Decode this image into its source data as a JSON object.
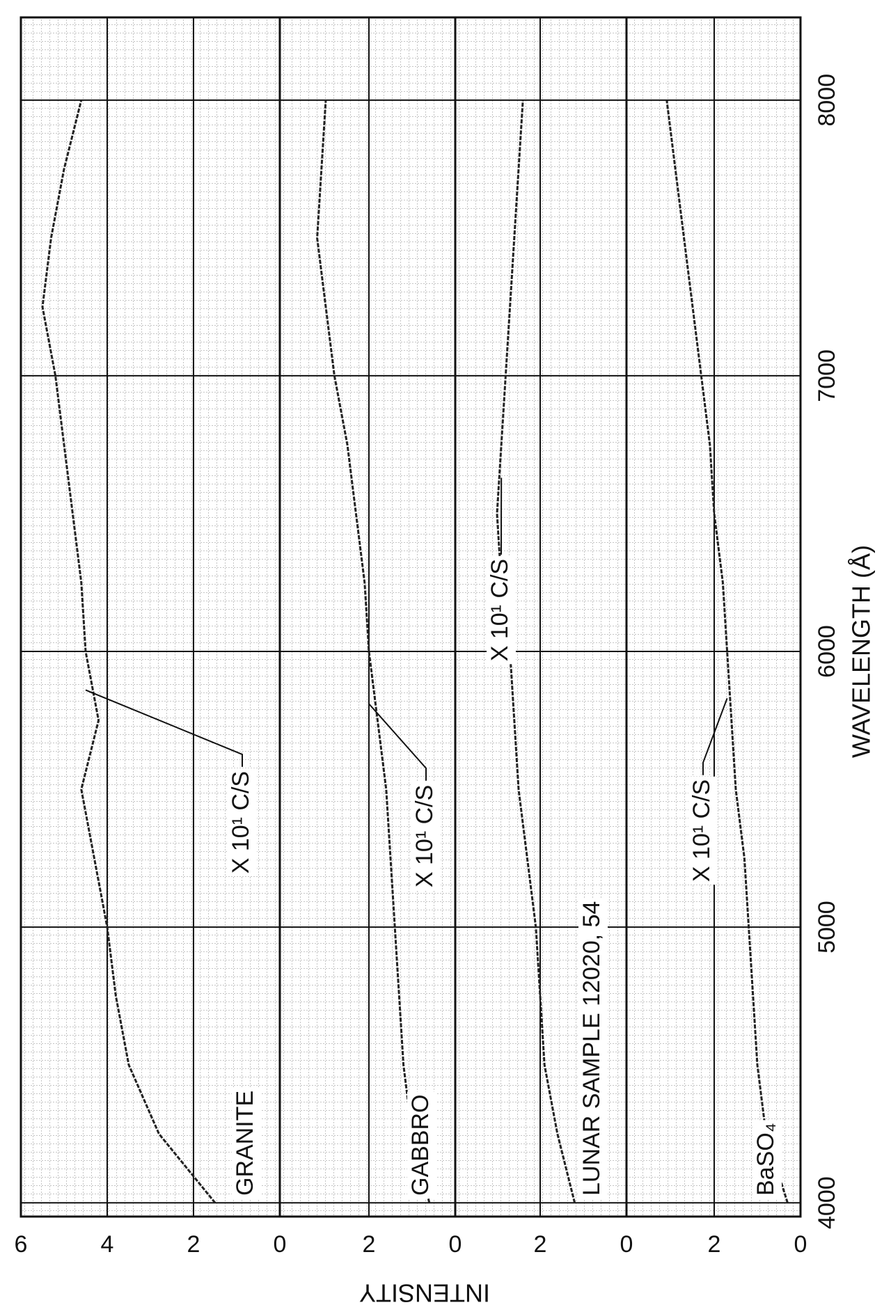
{
  "chart_data": {
    "type": "line",
    "x_label": "WAVELENGTH (Å)",
    "y_label": "INTENSITY",
    "xlim": [
      3950,
      8300
    ],
    "xticks": [
      4000,
      5000,
      6000,
      7000,
      8000
    ],
    "x": [
      4000,
      4250,
      4500,
      4750,
      5000,
      5250,
      5500,
      5750,
      6000,
      6250,
      6500,
      6750,
      7000,
      7250,
      7500,
      7750,
      8000
    ],
    "grid": true,
    "panels": [
      {
        "name": "BaSO₄",
        "scale_label": "X 10¹ C/S",
        "color": "#222222",
        "ylim": [
          0,
          4
        ],
        "yticks": [
          0,
          2
        ],
        "values": [
          0.3,
          0.8,
          1.0,
          1.1,
          1.2,
          1.3,
          1.5,
          1.6,
          1.7,
          1.8,
          2.0,
          2.1,
          2.3,
          2.5,
          2.7,
          2.9,
          3.1
        ]
      },
      {
        "name": "LUNAR SAMPLE 12020, 54",
        "scale_label": "X 10¹ C/S",
        "color": "#222222",
        "ylim": [
          0,
          4
        ],
        "yticks": [
          0,
          2
        ],
        "values": [
          1.2,
          1.6,
          1.9,
          2.0,
          2.1,
          2.3,
          2.5,
          2.6,
          2.7,
          2.9,
          3.0,
          2.9,
          2.8,
          2.7,
          2.6,
          2.5,
          2.4
        ]
      },
      {
        "name": "GABBRO",
        "scale_label": "X 10¹ C/S",
        "color": "#222222",
        "ylim": [
          0,
          4
        ],
        "yticks": [
          0,
          2
        ],
        "values": [
          0.6,
          1.0,
          1.2,
          1.3,
          1.4,
          1.5,
          1.6,
          1.8,
          2.0,
          2.1,
          2.3,
          2.5,
          2.8,
          3.0,
          3.2,
          3.1,
          3.0
        ]
      },
      {
        "name": "GRANITE",
        "scale_label": "X 10¹ C/S",
        "color": "#222222",
        "ylim": [
          0,
          6
        ],
        "yticks": [
          0,
          2,
          4,
          6
        ],
        "values": [
          1.5,
          2.8,
          3.5,
          3.8,
          4.0,
          4.3,
          4.6,
          4.2,
          4.5,
          4.6,
          4.8,
          5.0,
          5.2,
          5.5,
          5.3,
          5.0,
          4.6
        ]
      }
    ]
  }
}
